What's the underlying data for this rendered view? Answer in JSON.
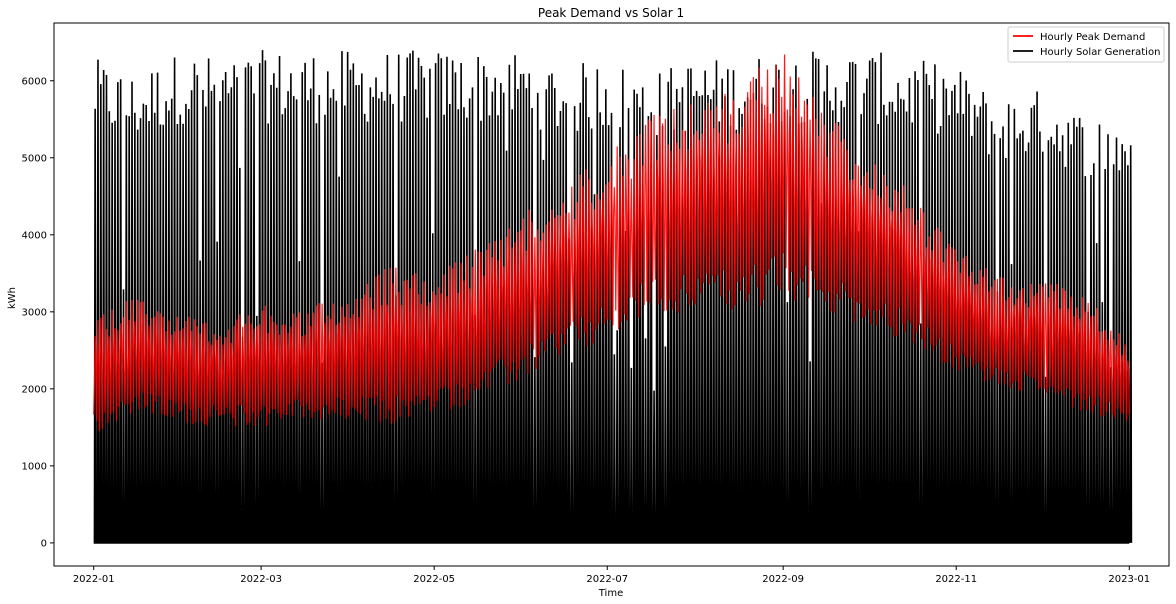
{
  "chart_data": {
    "type": "line",
    "title": "Peak Demand vs Solar 1",
    "xlabel": "Time",
    "ylabel": "kWh",
    "xlim": [
      "2021-12-18",
      "2023-01-15"
    ],
    "ylim": [
      -300,
      6750
    ],
    "x_ticks": [
      "2022-01",
      "2022-03",
      "2022-05",
      "2022-07",
      "2022-09",
      "2022-11",
      "2023-01"
    ],
    "y_ticks": [
      0,
      1000,
      2000,
      3000,
      4000,
      5000,
      6000
    ],
    "grid": false,
    "legend": {
      "placement": "top-right"
    },
    "x_range": [
      "2022-01-01",
      "2023-01-01"
    ],
    "series": [
      {
        "name": "Hourly Peak Demand",
        "color": "#ff0000",
        "x": [
          "2022-01-01",
          "2022-01-15",
          "2022-02-01",
          "2022-02-15",
          "2022-03-01",
          "2022-03-15",
          "2022-04-01",
          "2022-04-15",
          "2022-05-01",
          "2022-05-15",
          "2022-06-01",
          "2022-06-15",
          "2022-07-01",
          "2022-07-15",
          "2022-08-01",
          "2022-08-15",
          "2022-09-01",
          "2022-09-15",
          "2022-10-01",
          "2022-10-15",
          "2022-11-01",
          "2022-11-15",
          "2022-12-01",
          "2022-12-15",
          "2023-01-01"
        ],
        "low": [
          1400,
          1700,
          1550,
          1500,
          1500,
          1600,
          1550,
          1500,
          1650,
          1800,
          2100,
          2400,
          2600,
          2900,
          3000,
          3000,
          3100,
          3000,
          2800,
          2600,
          2200,
          2000,
          1900,
          1700,
          1550
        ],
        "high": [
          2900,
          3200,
          3000,
          2900,
          3100,
          3000,
          3300,
          3600,
          3500,
          3800,
          4300,
          4700,
          5000,
          5600,
          5800,
          5900,
          6500,
          5600,
          5100,
          4600,
          3800,
          3500,
          3400,
          3300,
          2600
        ]
      },
      {
        "name": "Hourly Solar Generation",
        "color": "#000000",
        "x": [
          "2022-01-01",
          "2022-01-15",
          "2022-02-01",
          "2022-02-15",
          "2022-03-01",
          "2022-03-15",
          "2022-04-01",
          "2022-04-15",
          "2022-05-01",
          "2022-05-15",
          "2022-06-01",
          "2022-06-15",
          "2022-07-01",
          "2022-07-15",
          "2022-08-01",
          "2022-08-15",
          "2022-09-01",
          "2022-09-15",
          "2022-10-01",
          "2022-10-15",
          "2022-11-01",
          "2022-11-15",
          "2022-12-01",
          "2022-12-15",
          "2023-01-01"
        ],
        "low": [
          0,
          0,
          0,
          0,
          0,
          0,
          0,
          0,
          0,
          0,
          0,
          0,
          0,
          0,
          0,
          0,
          0,
          0,
          0,
          0,
          0,
          0,
          0,
          0,
          0
        ],
        "high": [
          6300,
          6100,
          6400,
          6300,
          6400,
          6400,
          6400,
          6400,
          6400,
          6400,
          6400,
          6200,
          6300,
          6100,
          6300,
          6300,
          6400,
          6400,
          6400,
          6300,
          6200,
          5800,
          5900,
          5600,
          5500
        ]
      }
    ]
  }
}
